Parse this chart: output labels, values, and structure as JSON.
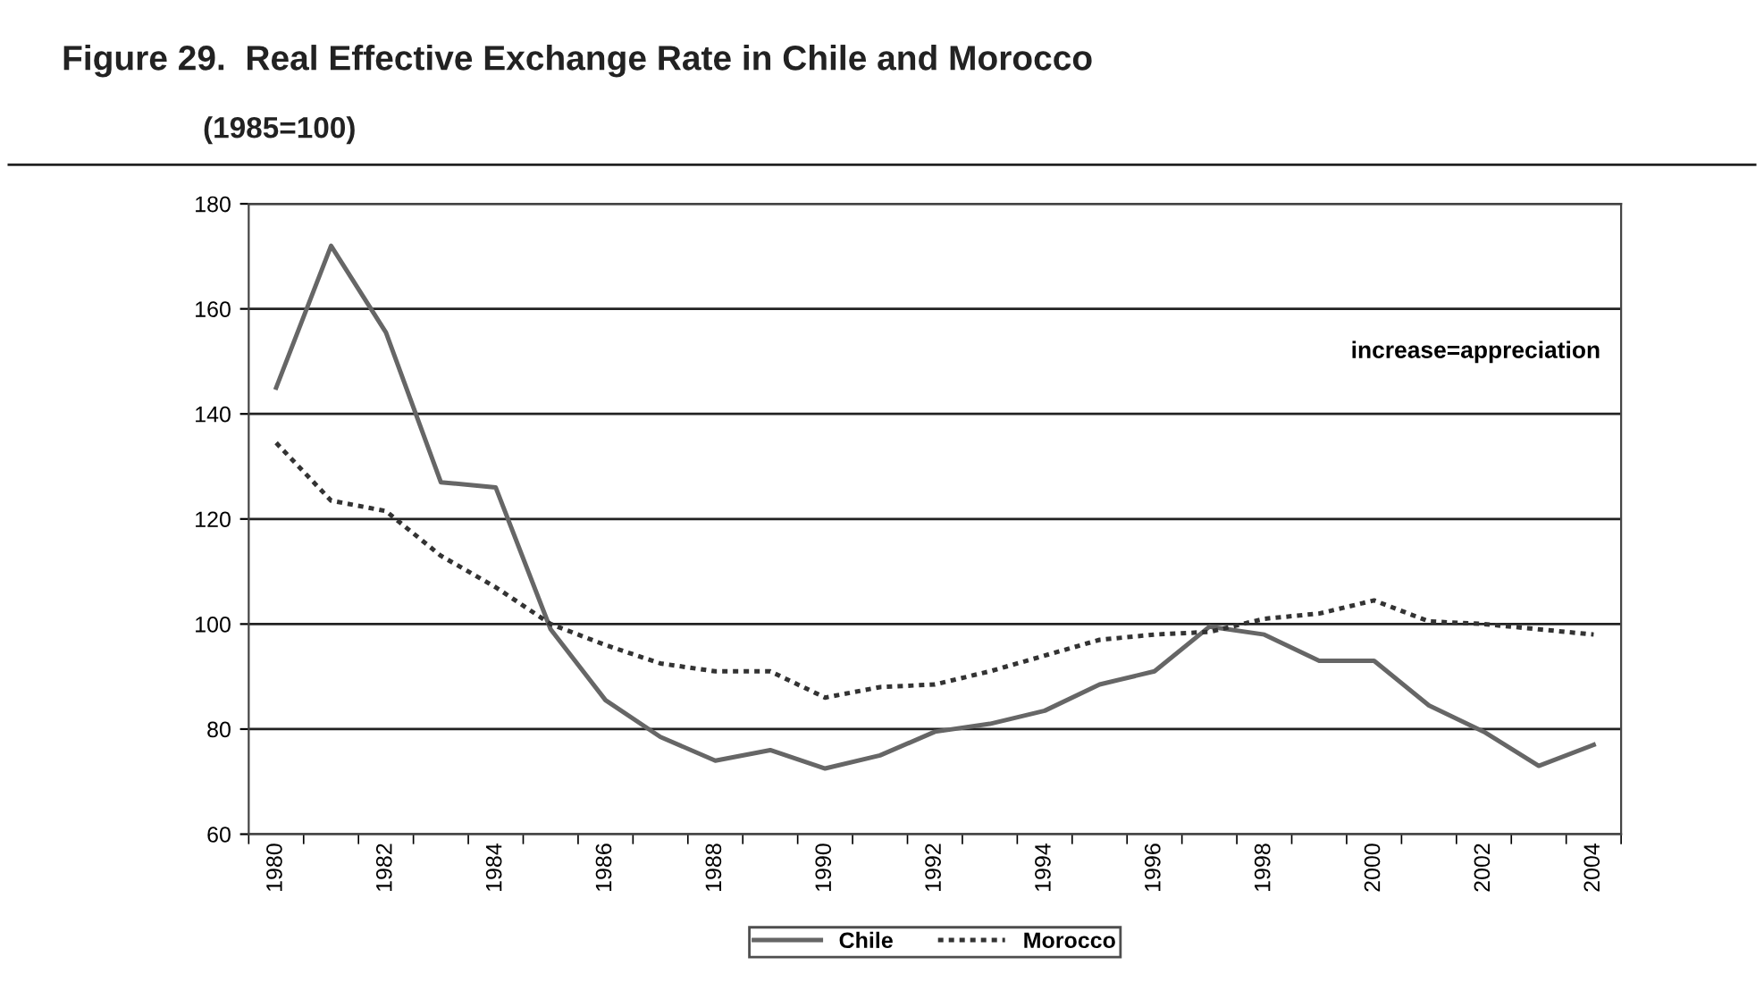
{
  "chart_data": {
    "type": "line",
    "title": "Figure 29.  Real Effective Exchange Rate in Chile and Morocco",
    "subtitle": "(1985=100)",
    "categories": [
      "1980",
      null,
      "1982",
      null,
      "1984",
      null,
      "1986",
      null,
      "1988",
      null,
      "1990",
      null,
      "1992",
      null,
      "1994",
      null,
      "1996",
      null,
      "1998",
      null,
      "2000",
      null,
      "2002",
      null,
      "2004"
    ],
    "series": [
      {
        "name": "Chile",
        "color": "#666666",
        "line_style": "solid",
        "values": [
          145,
          172,
          155.5,
          127,
          126,
          99,
          85.5,
          78.5,
          74,
          76,
          72.5,
          75,
          79.5,
          81,
          83.5,
          88.5,
          91,
          99.5,
          98,
          93,
          93,
          84.5,
          79.5,
          73,
          77
        ]
      },
      {
        "name": "Morocco",
        "color": "#333333",
        "line_style": "dotted",
        "values": [
          134.5,
          123.5,
          121.5,
          113,
          107,
          100,
          96,
          92.5,
          91,
          91,
          86,
          88,
          88.5,
          91,
          94,
          97,
          98,
          98.5,
          101,
          102,
          104.5,
          100.5,
          100,
          99,
          98
        ]
      }
    ],
    "ylim": [
      60,
      180
    ],
    "yticks": [
      60,
      80,
      100,
      120,
      140,
      160,
      180
    ],
    "grid": "y",
    "legend": "bottom",
    "annotations": [
      "increase=appreciation"
    ]
  }
}
